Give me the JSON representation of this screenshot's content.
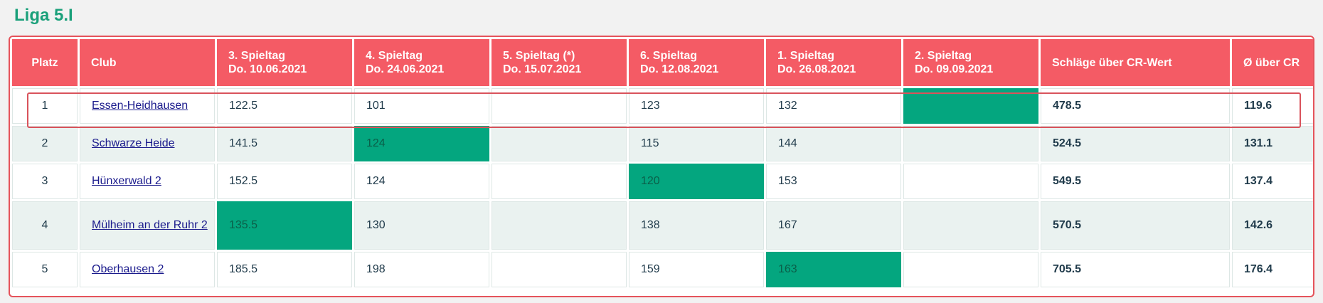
{
  "title": "Liga 5.I",
  "headers": {
    "platz": "Platz",
    "club": "Club",
    "s3": [
      "3. Spieltag",
      "Do. 10.06.2021"
    ],
    "s4": [
      "4. Spieltag",
      "Do. 24.06.2021"
    ],
    "s5": [
      "5. Spieltag (*)",
      "Do. 15.07.2021"
    ],
    "s6": [
      "6. Spieltag",
      "Do. 12.08.2021"
    ],
    "s1": [
      "1. Spieltag",
      "Do. 26.08.2021"
    ],
    "s2": [
      "2. Spieltag",
      "Do. 09.09.2021"
    ],
    "schlaege": "Schläge über CR-Wert",
    "avg": "Ø über CR"
  },
  "rows": [
    {
      "platz": "1",
      "club": "Essen-Heidhausen",
      "s3": "122.5",
      "s4": "101",
      "s5": "",
      "s6": "123",
      "s1": "132",
      "s2": "",
      "schlaege": "478.5",
      "avg": "119.6"
    },
    {
      "platz": "2",
      "club": "Schwarze Heide",
      "s3": "141.5",
      "s4": "124",
      "s5": "",
      "s6": "115",
      "s1": "144",
      "s2": "",
      "schlaege": "524.5",
      "avg": "131.1"
    },
    {
      "platz": "3",
      "club": "Hünxerwald 2",
      "s3": "152.5",
      "s4": "124",
      "s5": "",
      "s6": "120",
      "s1": "153",
      "s2": "",
      "schlaege": "549.5",
      "avg": "137.4"
    },
    {
      "platz": "4",
      "club": "Mülheim an der Ruhr 2",
      "s3": "135.5",
      "s4": "130",
      "s5": "",
      "s6": "138",
      "s1": "167",
      "s2": "",
      "schlaege": "570.5",
      "avg": "142.6"
    },
    {
      "platz": "5",
      "club": "Oberhausen 2",
      "s3": "185.5",
      "s4": "198",
      "s5": "",
      "s6": "159",
      "s1": "163",
      "s2": "",
      "schlaege": "705.5",
      "avg": "176.4"
    }
  ],
  "colors": {
    "header_bg": "#f45b65",
    "title": "#1aa07a",
    "streich_cell": "#04a67f",
    "highlight_border": "#d9535b"
  }
}
